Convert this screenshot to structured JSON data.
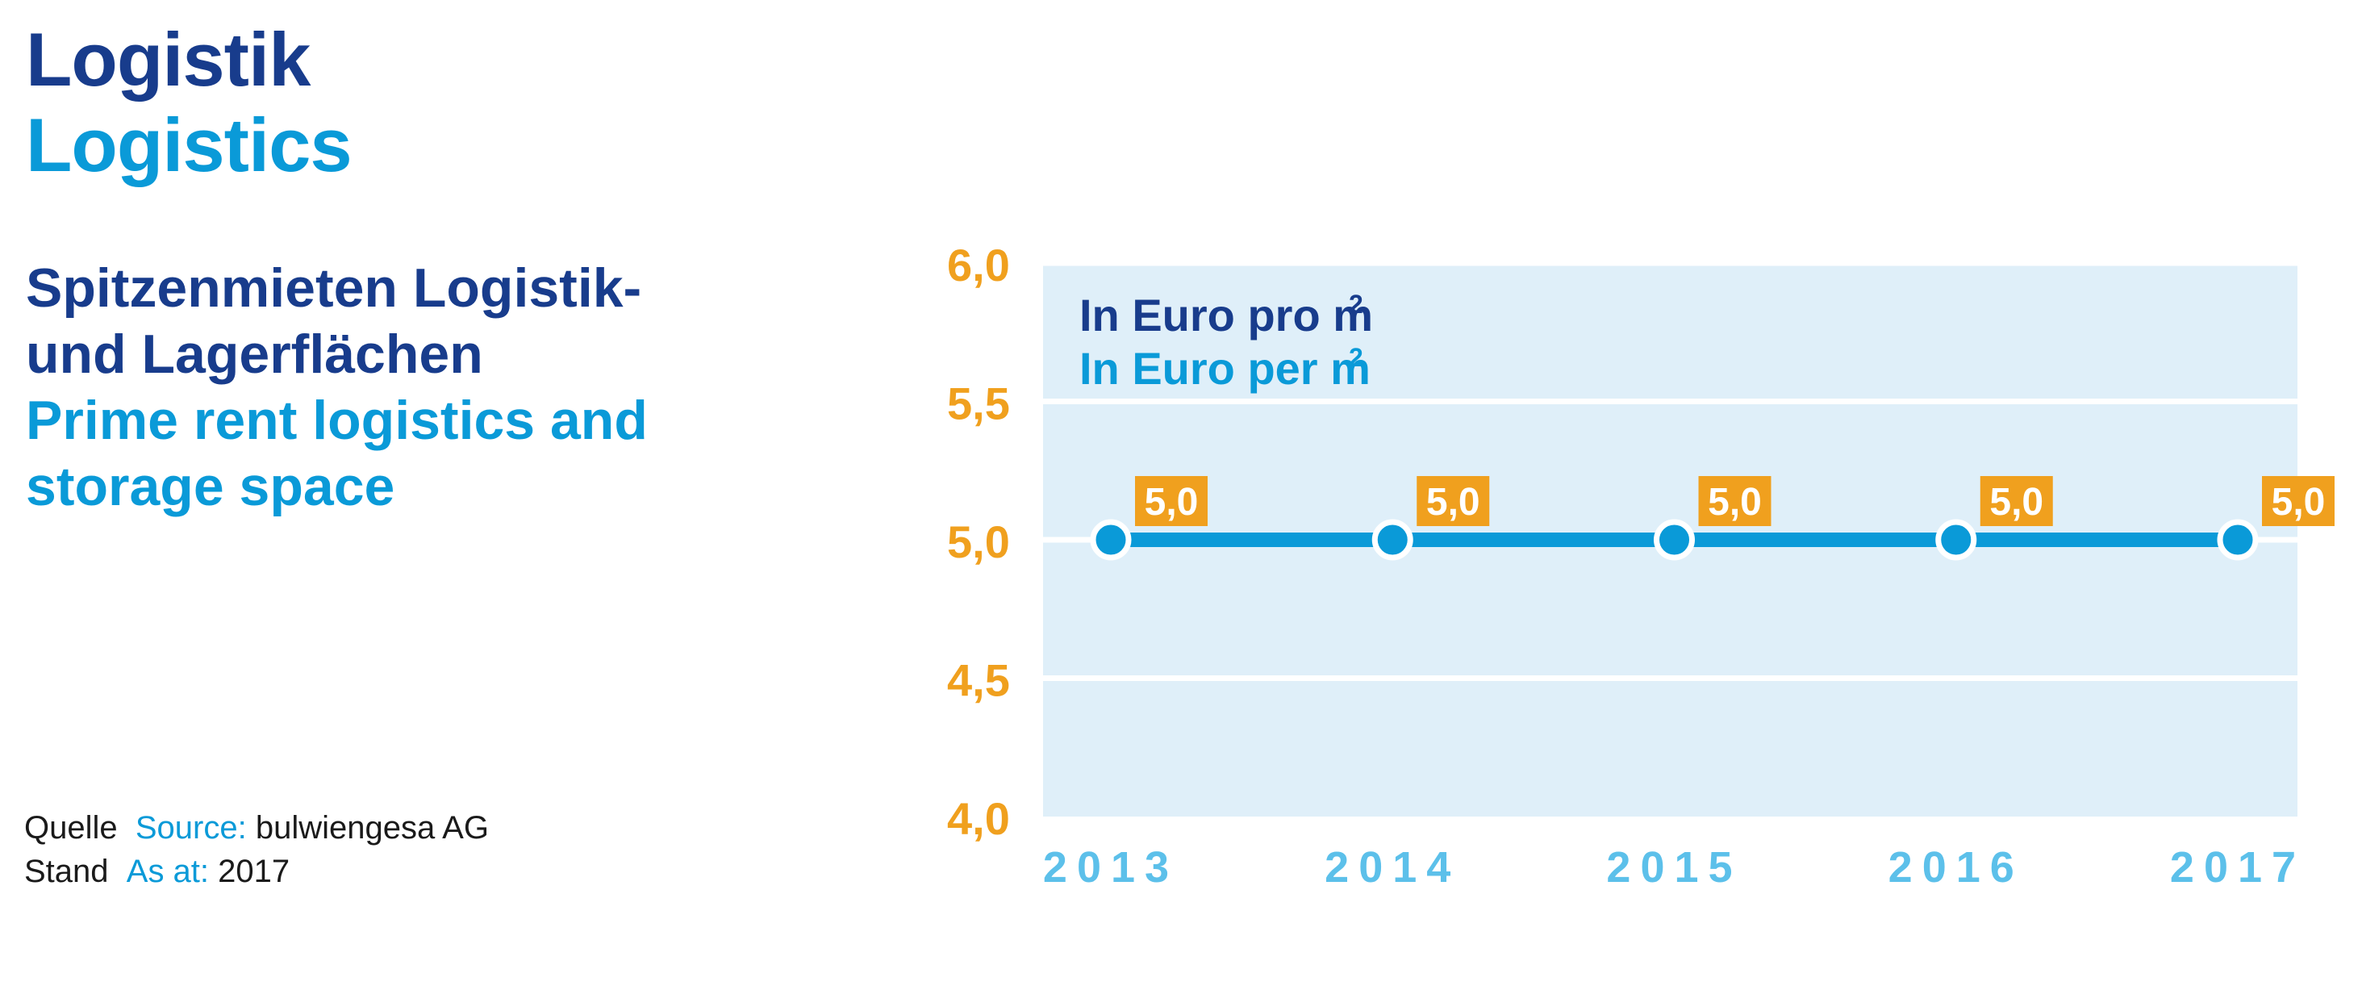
{
  "header": {
    "title_de": "Logistik",
    "title_en": "Logistics"
  },
  "subtitle": {
    "de_line1": "Spitzenmieten Logistik-",
    "de_line2": "und Lagerflächen",
    "en_line1": "Prime rent logistics and",
    "en_line2": "storage space"
  },
  "footer": {
    "source_label_de": "Quelle",
    "source_label_en": "Source:",
    "source_value": "bulwiengesa AG",
    "stand_label_de": "Stand",
    "stand_label_en": "As at:",
    "stand_value": "2017"
  },
  "colors": {
    "dark_blue": "#183c8c",
    "light_blue": "#0a9ad8",
    "orange": "#f0a01e",
    "plot_bg": "#dfeff9",
    "year_label": "#5cc0ea"
  },
  "chart_data": {
    "type": "line",
    "unit_de_text": "In Euro pro m",
    "unit_en_text": "In Euro per m",
    "unit_superscript": "2",
    "x": [
      "2013",
      "2014",
      "2015",
      "2016",
      "2017"
    ],
    "series": [
      {
        "values": [
          5.0,
          5.0,
          5.0,
          5.0,
          5.0
        ]
      }
    ],
    "data_labels": [
      "5,0",
      "5,0",
      "5,0",
      "5,0",
      "5,0"
    ],
    "y_ticks": [
      "4,0",
      "4,5",
      "5,0",
      "5,5",
      "6,0"
    ],
    "y_tick_values": [
      4.0,
      4.5,
      5.0,
      5.5,
      6.0
    ],
    "ylim": [
      4.0,
      6.0
    ],
    "grid": true
  }
}
